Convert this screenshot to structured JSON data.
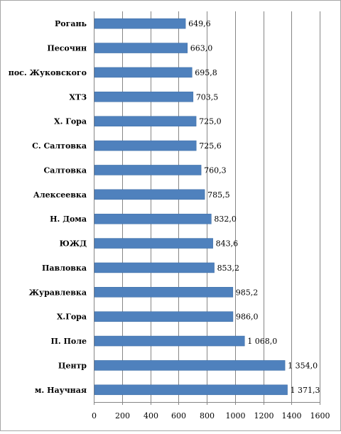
{
  "chart_data": {
    "type": "bar",
    "orientation": "horizontal",
    "title": "",
    "xlabel": "",
    "ylabel": "",
    "categories": [
      "Рогань",
      "Песочин",
      "пос. Жуковского",
      "ХТЗ",
      "Х. Гора",
      "С. Салтовка",
      "Салтовка",
      "Алексеевка",
      "Н. Дома",
      "ЮЖД",
      "Павловка",
      "Журавлевка",
      "Х.Гора",
      "П. Поле",
      "Центр",
      "м. Научная"
    ],
    "values": [
      649.6,
      663.0,
      695.8,
      703.5,
      725.0,
      725.6,
      760.3,
      785.5,
      832.0,
      843.6,
      853.2,
      985.2,
      986.0,
      1068.0,
      1354.0,
      1371.3
    ],
    "value_labels": [
      "649,6",
      "663,0",
      "695,8",
      "703,5",
      "725,0",
      "725,6",
      "760,3",
      "785,5",
      "832,0",
      "843,6",
      "853,2",
      "985,2",
      "986,0",
      "1 068,0",
      "1 354,0",
      "1 371,3"
    ],
    "xlim": [
      0,
      1600
    ],
    "xticks": [
      0,
      200,
      400,
      600,
      800,
      1000,
      1200,
      1400,
      1600
    ],
    "xtick_labels": [
      "0",
      "200",
      "400",
      "600",
      "800",
      "1000",
      "1200",
      "1400",
      "1600"
    ],
    "grid": "vertical",
    "legend": "none",
    "bar_color": "#4f81bd",
    "bar_edge_color": "#3a6aa3"
  }
}
